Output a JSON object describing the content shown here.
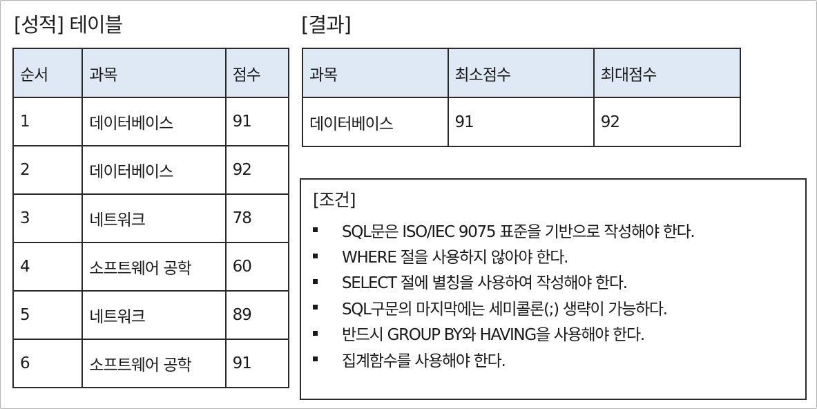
{
  "score_table": {
    "title": "[성적] 테이블",
    "headers": [
      "순서",
      "과목",
      "점수"
    ],
    "rows": [
      [
        "1",
        "데이터베이스",
        "91"
      ],
      [
        "2",
        "데이터베이스",
        "92"
      ],
      [
        "3",
        "네트워크",
        "78"
      ],
      [
        "4",
        "소프트웨어 공학",
        "60"
      ],
      [
        "5",
        "네트워크",
        "89"
      ],
      [
        "6",
        "소프트웨어 공학",
        "91"
      ]
    ]
  },
  "result_table": {
    "title": "[결과]",
    "headers": [
      "과목",
      "최소점수",
      "최대점수"
    ],
    "rows": [
      [
        "데이터베이스",
        "91",
        "92"
      ]
    ]
  },
  "conditions": {
    "title": "[조건]",
    "items": [
      "SQL문은 ISO/IEC 9075 표준을 기반으로 작성해야 한다.",
      "WHERE 절을 사용하지 않아야 한다.",
      "SELECT 절에 별칭을 사용하여 작성해야 한다.",
      "SQL구문의 마지막에는 세미콜론(;) 생략이 가능하다.",
      "반드시 GROUP BY와 HAVING을 사용해야 한다.",
      "집계함수를 사용해야 한다."
    ]
  }
}
